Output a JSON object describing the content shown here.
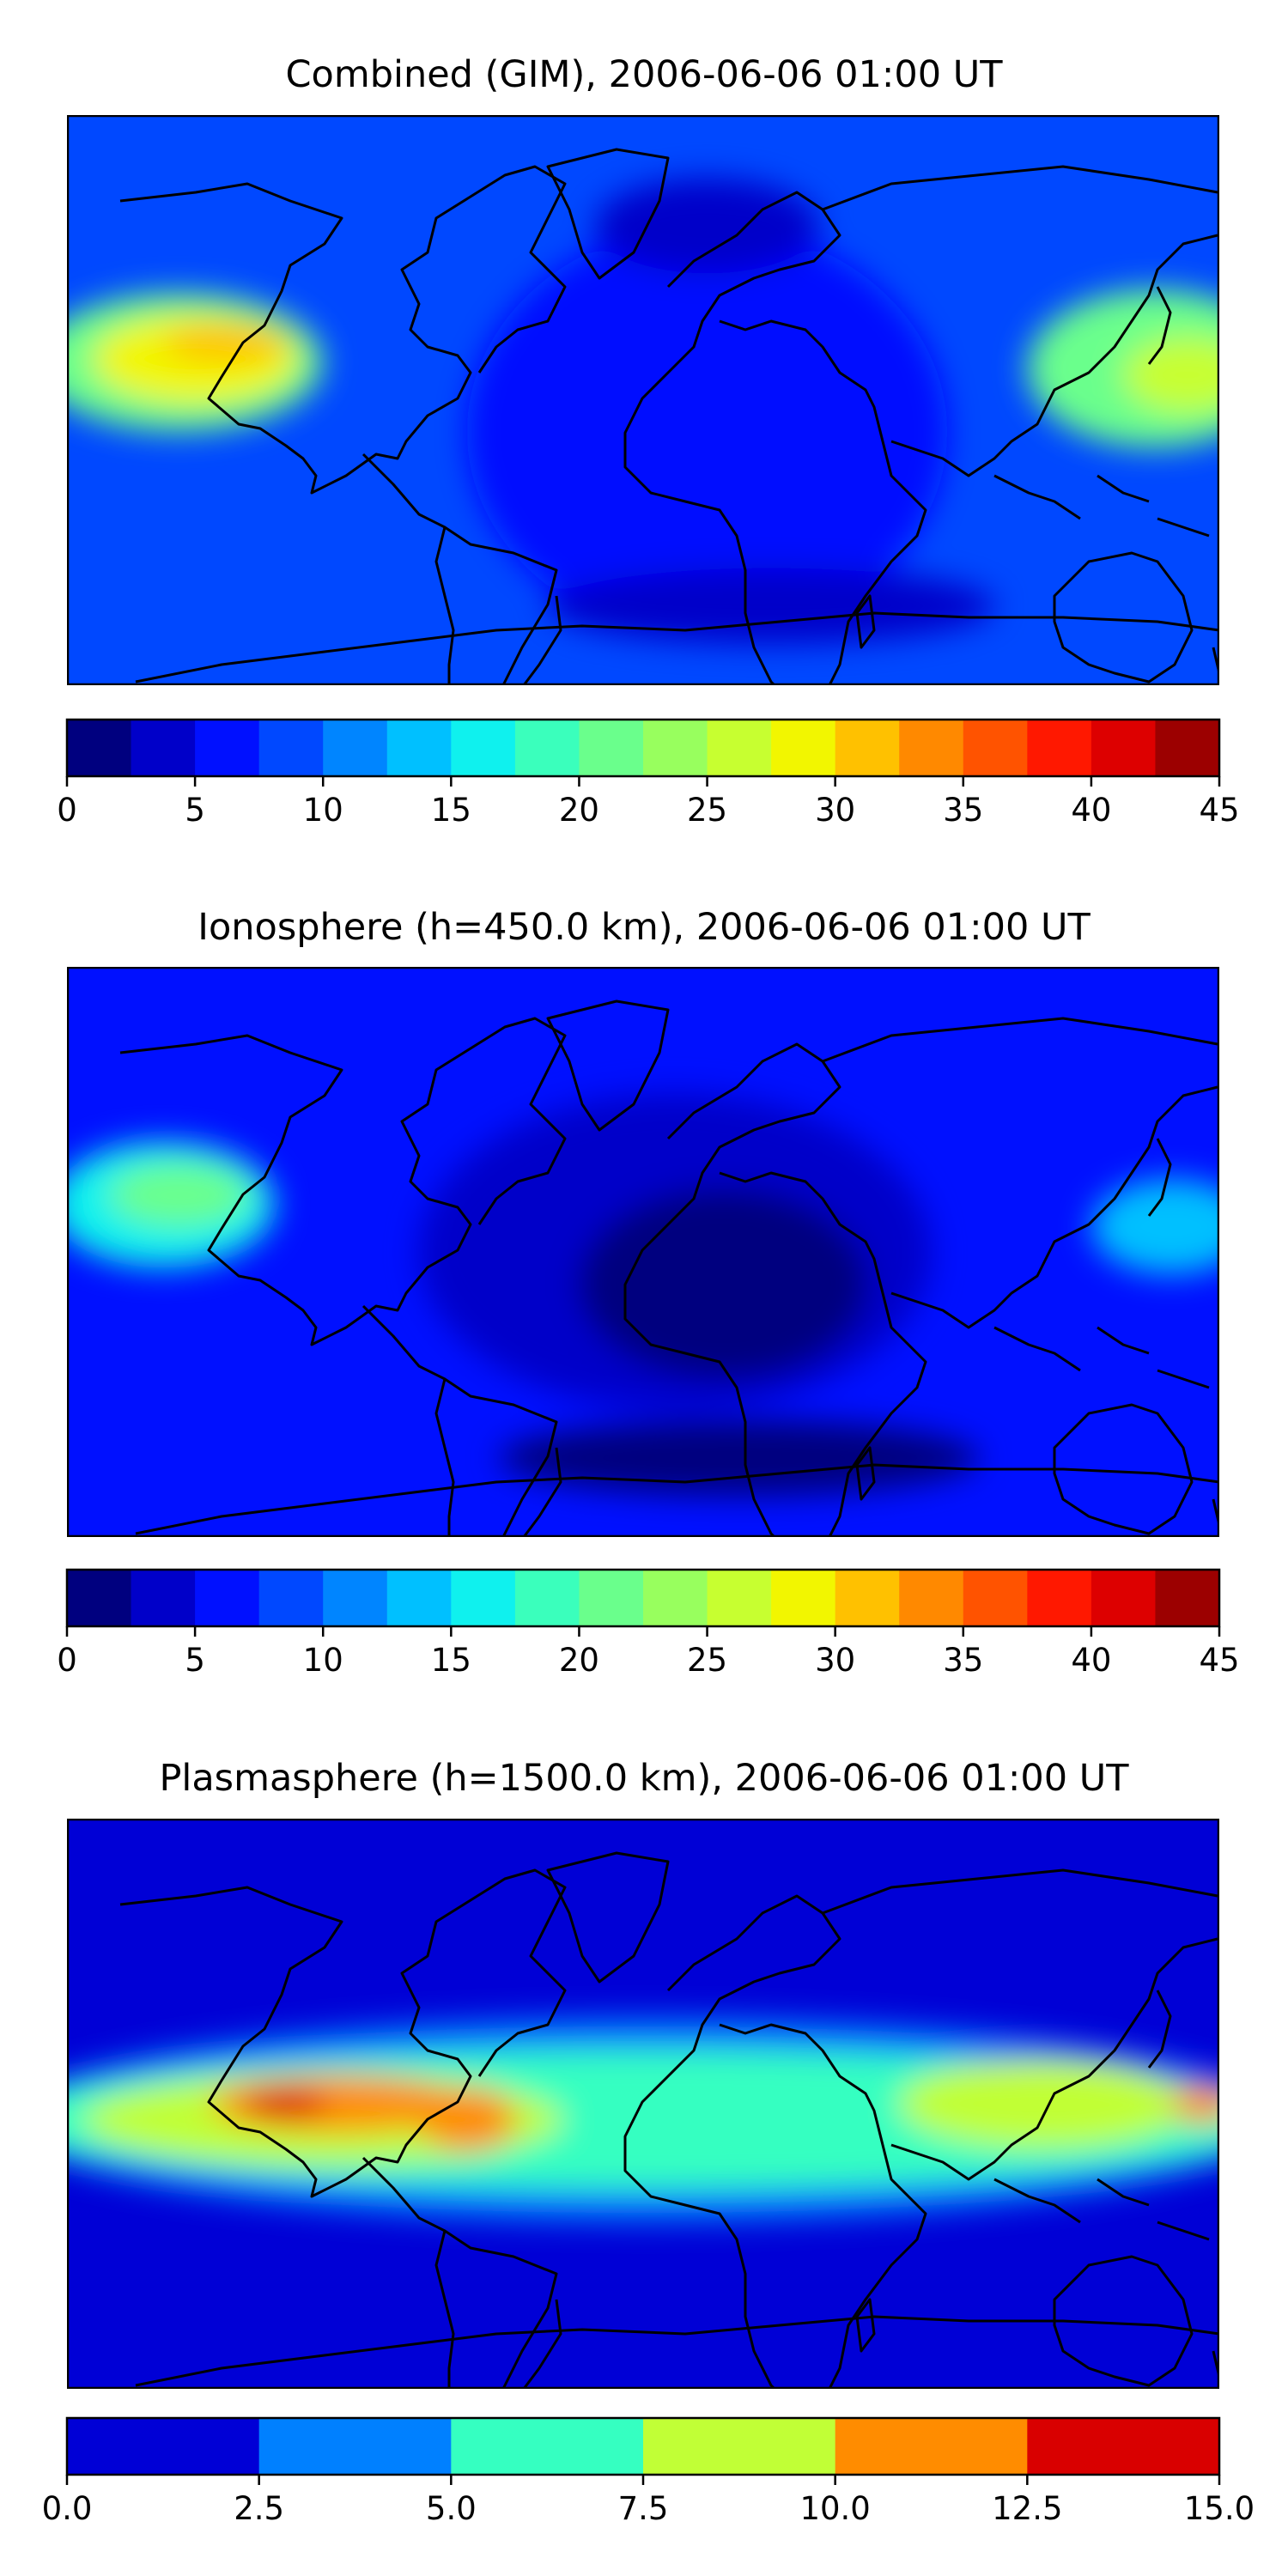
{
  "panels": [
    {
      "title": "Combined (GIM), 2006-06-06 01:00 UT",
      "colorbar": {
        "min": 0,
        "max": 45,
        "step": 2.5,
        "ticks": [
          "0",
          "5",
          "10",
          "15",
          "20",
          "25",
          "30",
          "35",
          "40",
          "45"
        ],
        "tick_values": [
          0,
          5,
          10,
          15,
          20,
          25,
          30,
          35,
          40,
          45
        ],
        "colors": [
          "#00007f",
          "#0000c9",
          "#0010ff",
          "#0048ff",
          "#0085ff",
          "#00c0ff",
          "#0ff1ee",
          "#3affbc",
          "#6aff8c",
          "#98ff5e",
          "#c7ff30",
          "#f2f600",
          "#ffc100",
          "#ff8900",
          "#ff5300",
          "#ff1800",
          "#dd0000",
          "#9c0000"
        ]
      },
      "background_value": 8,
      "blobs": [
        {
          "lon": -145,
          "lat": 12,
          "rx": 45,
          "ry": 22,
          "value": 22
        },
        {
          "lon": -140,
          "lat": 13,
          "rx": 32,
          "ry": 14,
          "value": 28
        },
        {
          "lon": -130,
          "lat": 18,
          "rx": 20,
          "ry": 6,
          "value": 31
        },
        {
          "lon": 160,
          "lat": 10,
          "rx": 40,
          "ry": 25,
          "value": 20
        },
        {
          "lon": 170,
          "lat": 8,
          "rx": 20,
          "ry": 12,
          "value": 27
        },
        {
          "lon": 20,
          "lat": -10,
          "rx": 75,
          "ry": 65,
          "value": 5
        },
        {
          "lon": 20,
          "lat": 55,
          "rx": 35,
          "ry": 15,
          "value": 3
        },
        {
          "lon": 40,
          "lat": -65,
          "rx": 70,
          "ry": 12,
          "value": 3
        }
      ]
    },
    {
      "title": "Ionosphere  (h=450.0 km), 2006-06-06 01:00 UT",
      "colorbar": {
        "min": 0,
        "max": 45,
        "step": 2.5,
        "ticks": [
          "0",
          "5",
          "10",
          "15",
          "20",
          "25",
          "30",
          "35",
          "40",
          "45"
        ],
        "tick_values": [
          0,
          5,
          10,
          15,
          20,
          25,
          30,
          35,
          40,
          45
        ],
        "colors": [
          "#00007f",
          "#0000c9",
          "#0010ff",
          "#0048ff",
          "#0085ff",
          "#00c0ff",
          "#0ff1ee",
          "#3affbc",
          "#6aff8c",
          "#98ff5e",
          "#c7ff30",
          "#f2f600",
          "#ffc100",
          "#ff8900",
          "#ff5300",
          "#ff1800",
          "#dd0000",
          "#9c0000"
        ]
      },
      "background_value": 6,
      "blobs": [
        {
          "lon": -150,
          "lat": 15,
          "rx": 35,
          "ry": 20,
          "value": 16
        },
        {
          "lon": -145,
          "lat": 18,
          "rx": 22,
          "ry": 10,
          "value": 21
        },
        {
          "lon": 165,
          "lat": 8,
          "rx": 25,
          "ry": 15,
          "value": 14
        },
        {
          "lon": 10,
          "lat": 0,
          "rx": 80,
          "ry": 50,
          "value": 3
        },
        {
          "lon": 25,
          "lat": -10,
          "rx": 45,
          "ry": 30,
          "value": 1.5
        },
        {
          "lon": 30,
          "lat": -65,
          "rx": 75,
          "ry": 12,
          "value": 1.5
        }
      ]
    },
    {
      "title": "Plasmasphere (h=1500.0 km), 2006-06-06 01:00 UT",
      "colorbar": {
        "min": 0.0,
        "max": 15.0,
        "step": 2.5,
        "ticks": [
          "0.0",
          "2.5",
          "5.0",
          "7.5",
          "10.0",
          "12.5",
          "15.0"
        ],
        "tick_values": [
          0,
          2.5,
          5,
          7.5,
          10,
          12.5,
          15
        ],
        "colors": [
          "#0000d6",
          "#0080ff",
          "#35ffc1",
          "#c1ff36",
          "#ff8c00",
          "#d90000"
        ]
      },
      "background_value": 1.5,
      "blobs": [
        {
          "lon": 0,
          "lat": -5,
          "rx": 200,
          "ry": 32,
          "value": 4
        },
        {
          "lon": 0,
          "lat": -5,
          "rx": 200,
          "ry": 22,
          "value": 6
        },
        {
          "lon": -100,
          "lat": -5,
          "rx": 75,
          "ry": 14,
          "value": 8.5
        },
        {
          "lon": 125,
          "lat": 0,
          "rx": 45,
          "ry": 14,
          "value": 8.5
        },
        {
          "lon": -95,
          "lat": 0,
          "rx": 40,
          "ry": 9,
          "value": 11
        },
        {
          "lon": -55,
          "lat": -5,
          "rx": 15,
          "ry": 10,
          "value": 11
        },
        {
          "lon": 175,
          "lat": 0,
          "rx": 10,
          "ry": 6,
          "value": 11
        },
        {
          "lon": -112,
          "lat": 0,
          "rx": 13,
          "ry": 5,
          "value": 13.5
        }
      ]
    }
  ]
}
